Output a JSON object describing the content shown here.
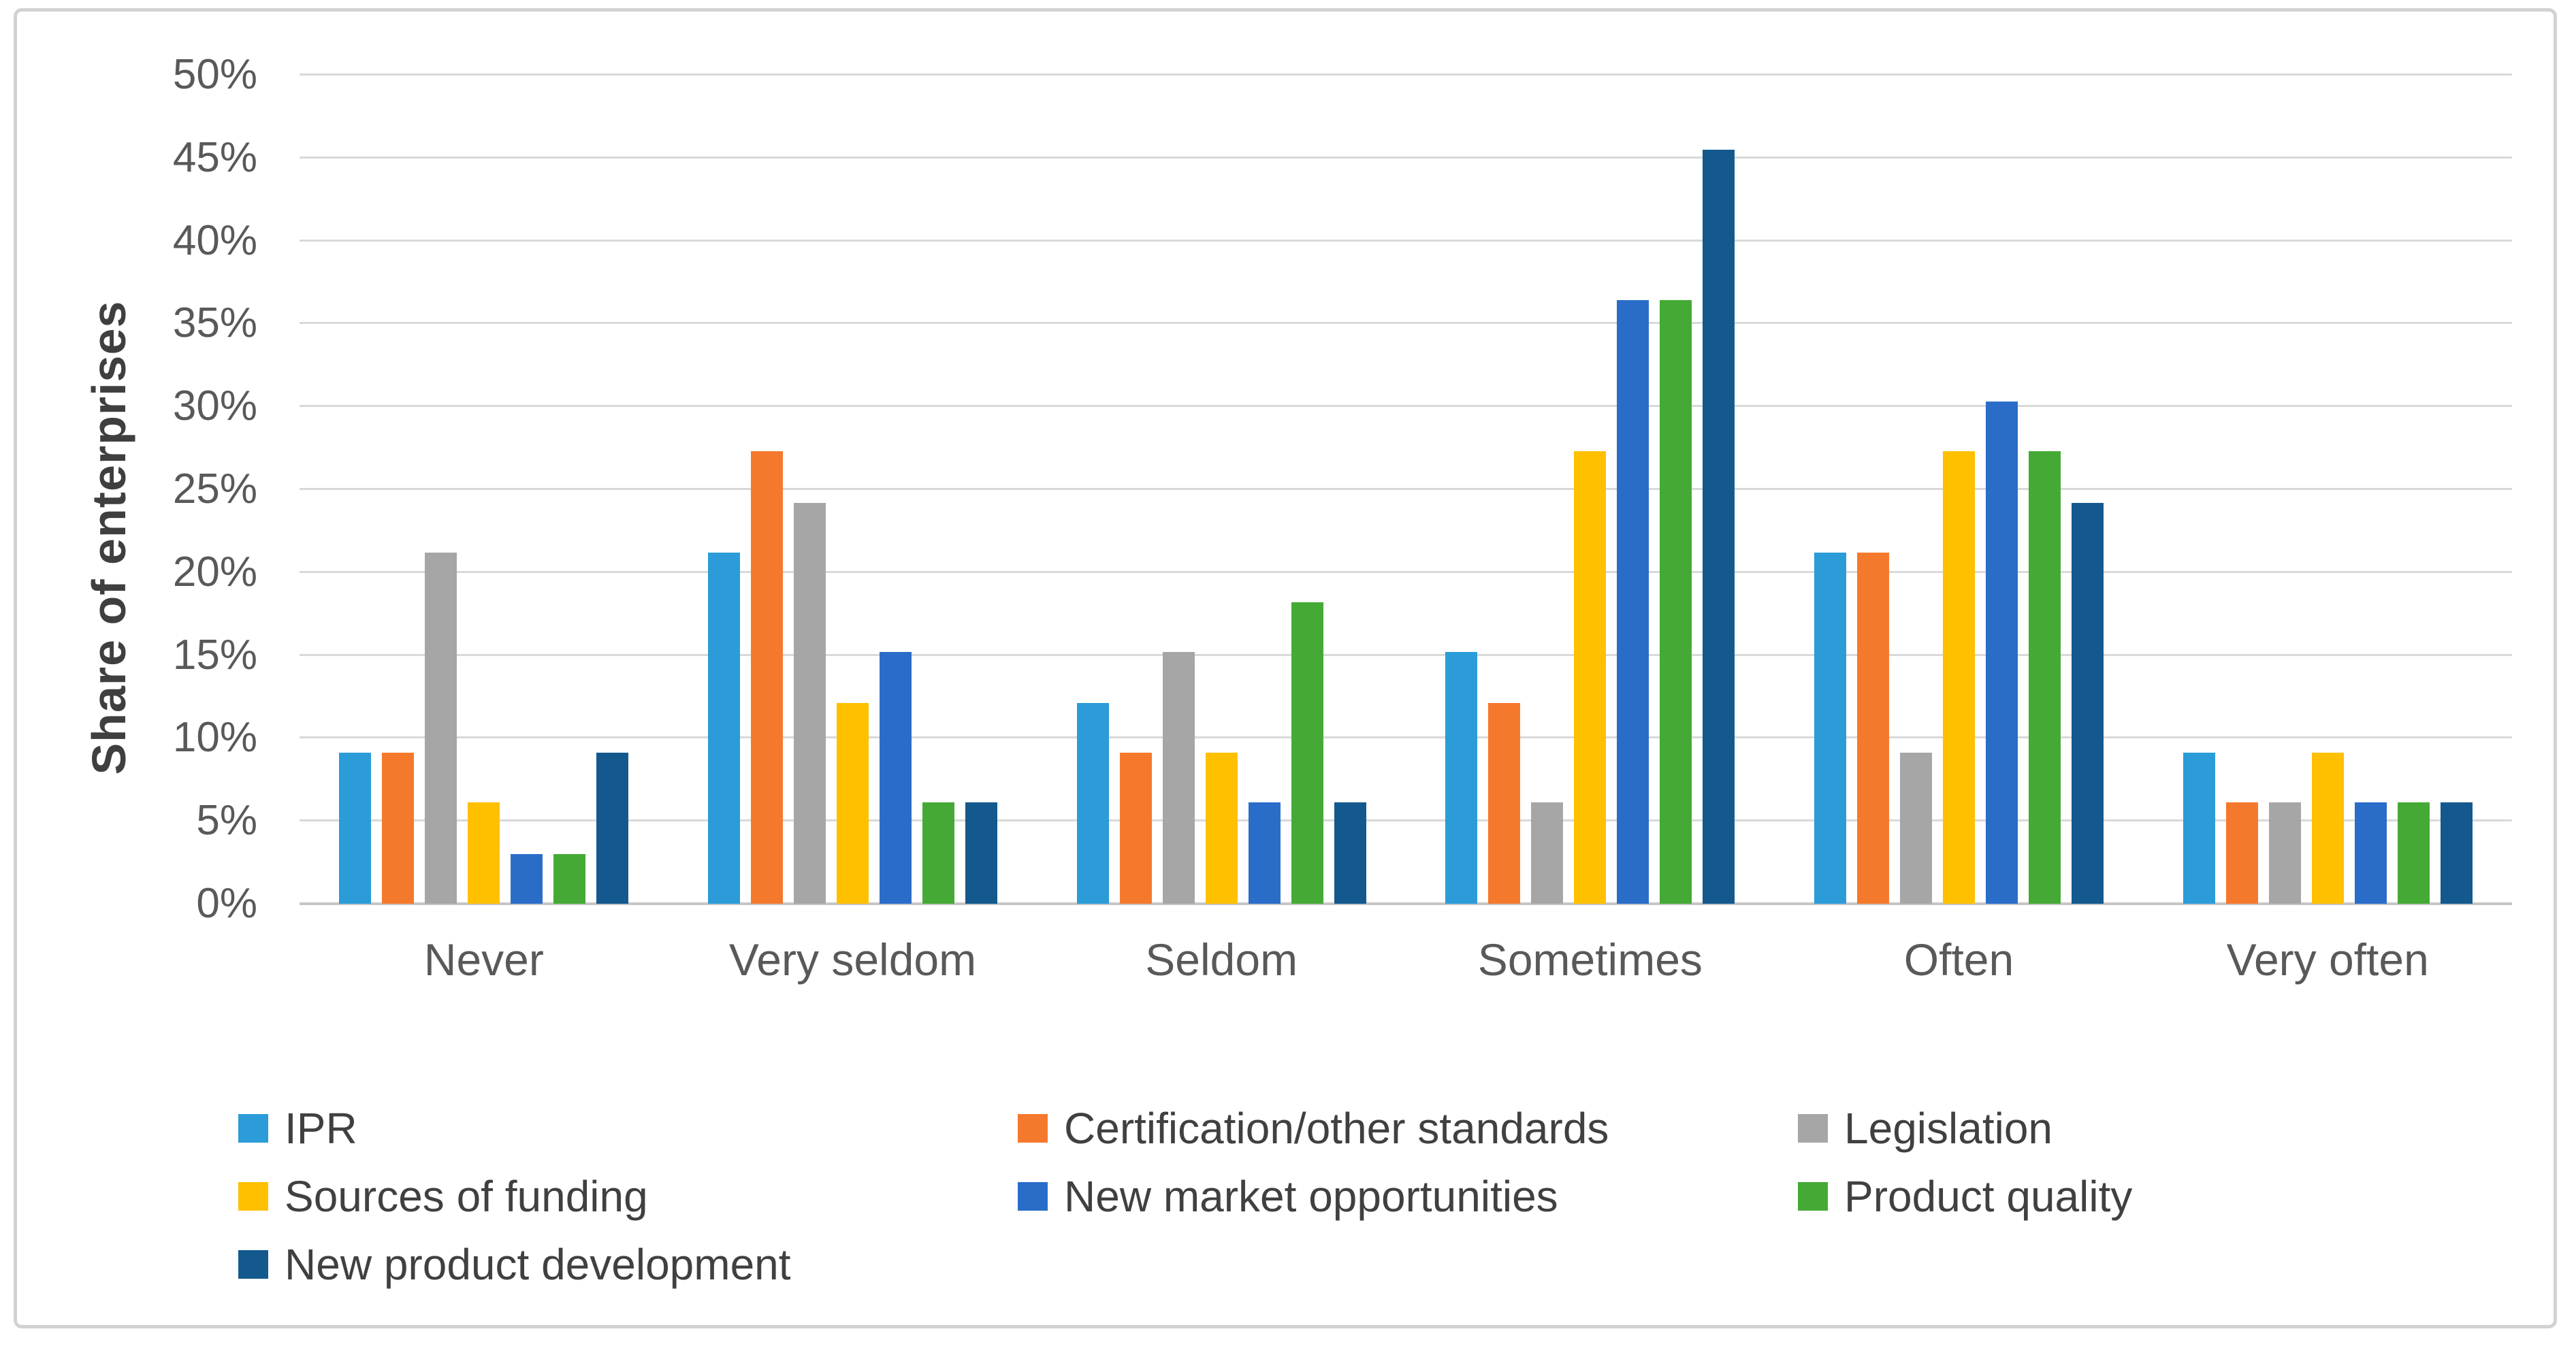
{
  "chart_data": {
    "type": "bar",
    "title": "",
    "xlabel": "",
    "ylabel": "Share of enterprises",
    "ylim": [
      0,
      50
    ],
    "ytick_step": 5,
    "yticks": [
      "0%",
      "5%",
      "10%",
      "15%",
      "20%",
      "25%",
      "30%",
      "35%",
      "40%",
      "45%",
      "50%"
    ],
    "grid": true,
    "legend_position": "bottom",
    "categories": [
      "Never",
      "Very seldom",
      "Seldom",
      "Sometimes",
      "Often",
      "Very often"
    ],
    "series": [
      {
        "name": "IPR",
        "color": "#2B9CD8",
        "values": [
          9.1,
          21.2,
          12.1,
          15.2,
          21.2,
          9.1
        ]
      },
      {
        "name": "Certification/other standards",
        "color": "#F5792D",
        "values": [
          9.1,
          27.3,
          9.1,
          12.1,
          21.2,
          6.1
        ]
      },
      {
        "name": "Legislation",
        "color": "#A6A6A6",
        "values": [
          21.2,
          24.2,
          15.2,
          6.1,
          9.1,
          6.1
        ]
      },
      {
        "name": "Sources of funding",
        "color": "#FFC000",
        "values": [
          6.1,
          12.1,
          9.1,
          27.3,
          27.3,
          9.1
        ]
      },
      {
        "name": "New market opportunities",
        "color": "#2A6DC9",
        "values": [
          3.0,
          15.2,
          6.1,
          36.4,
          30.3,
          6.1
        ]
      },
      {
        "name": "Product quality",
        "color": "#44AA35",
        "values": [
          3.0,
          6.1,
          18.2,
          36.4,
          27.3,
          6.1
        ]
      },
      {
        "name": "New product development",
        "color": "#14598E",
        "values": [
          9.1,
          6.1,
          6.1,
          45.5,
          24.2,
          6.1
        ]
      }
    ]
  }
}
